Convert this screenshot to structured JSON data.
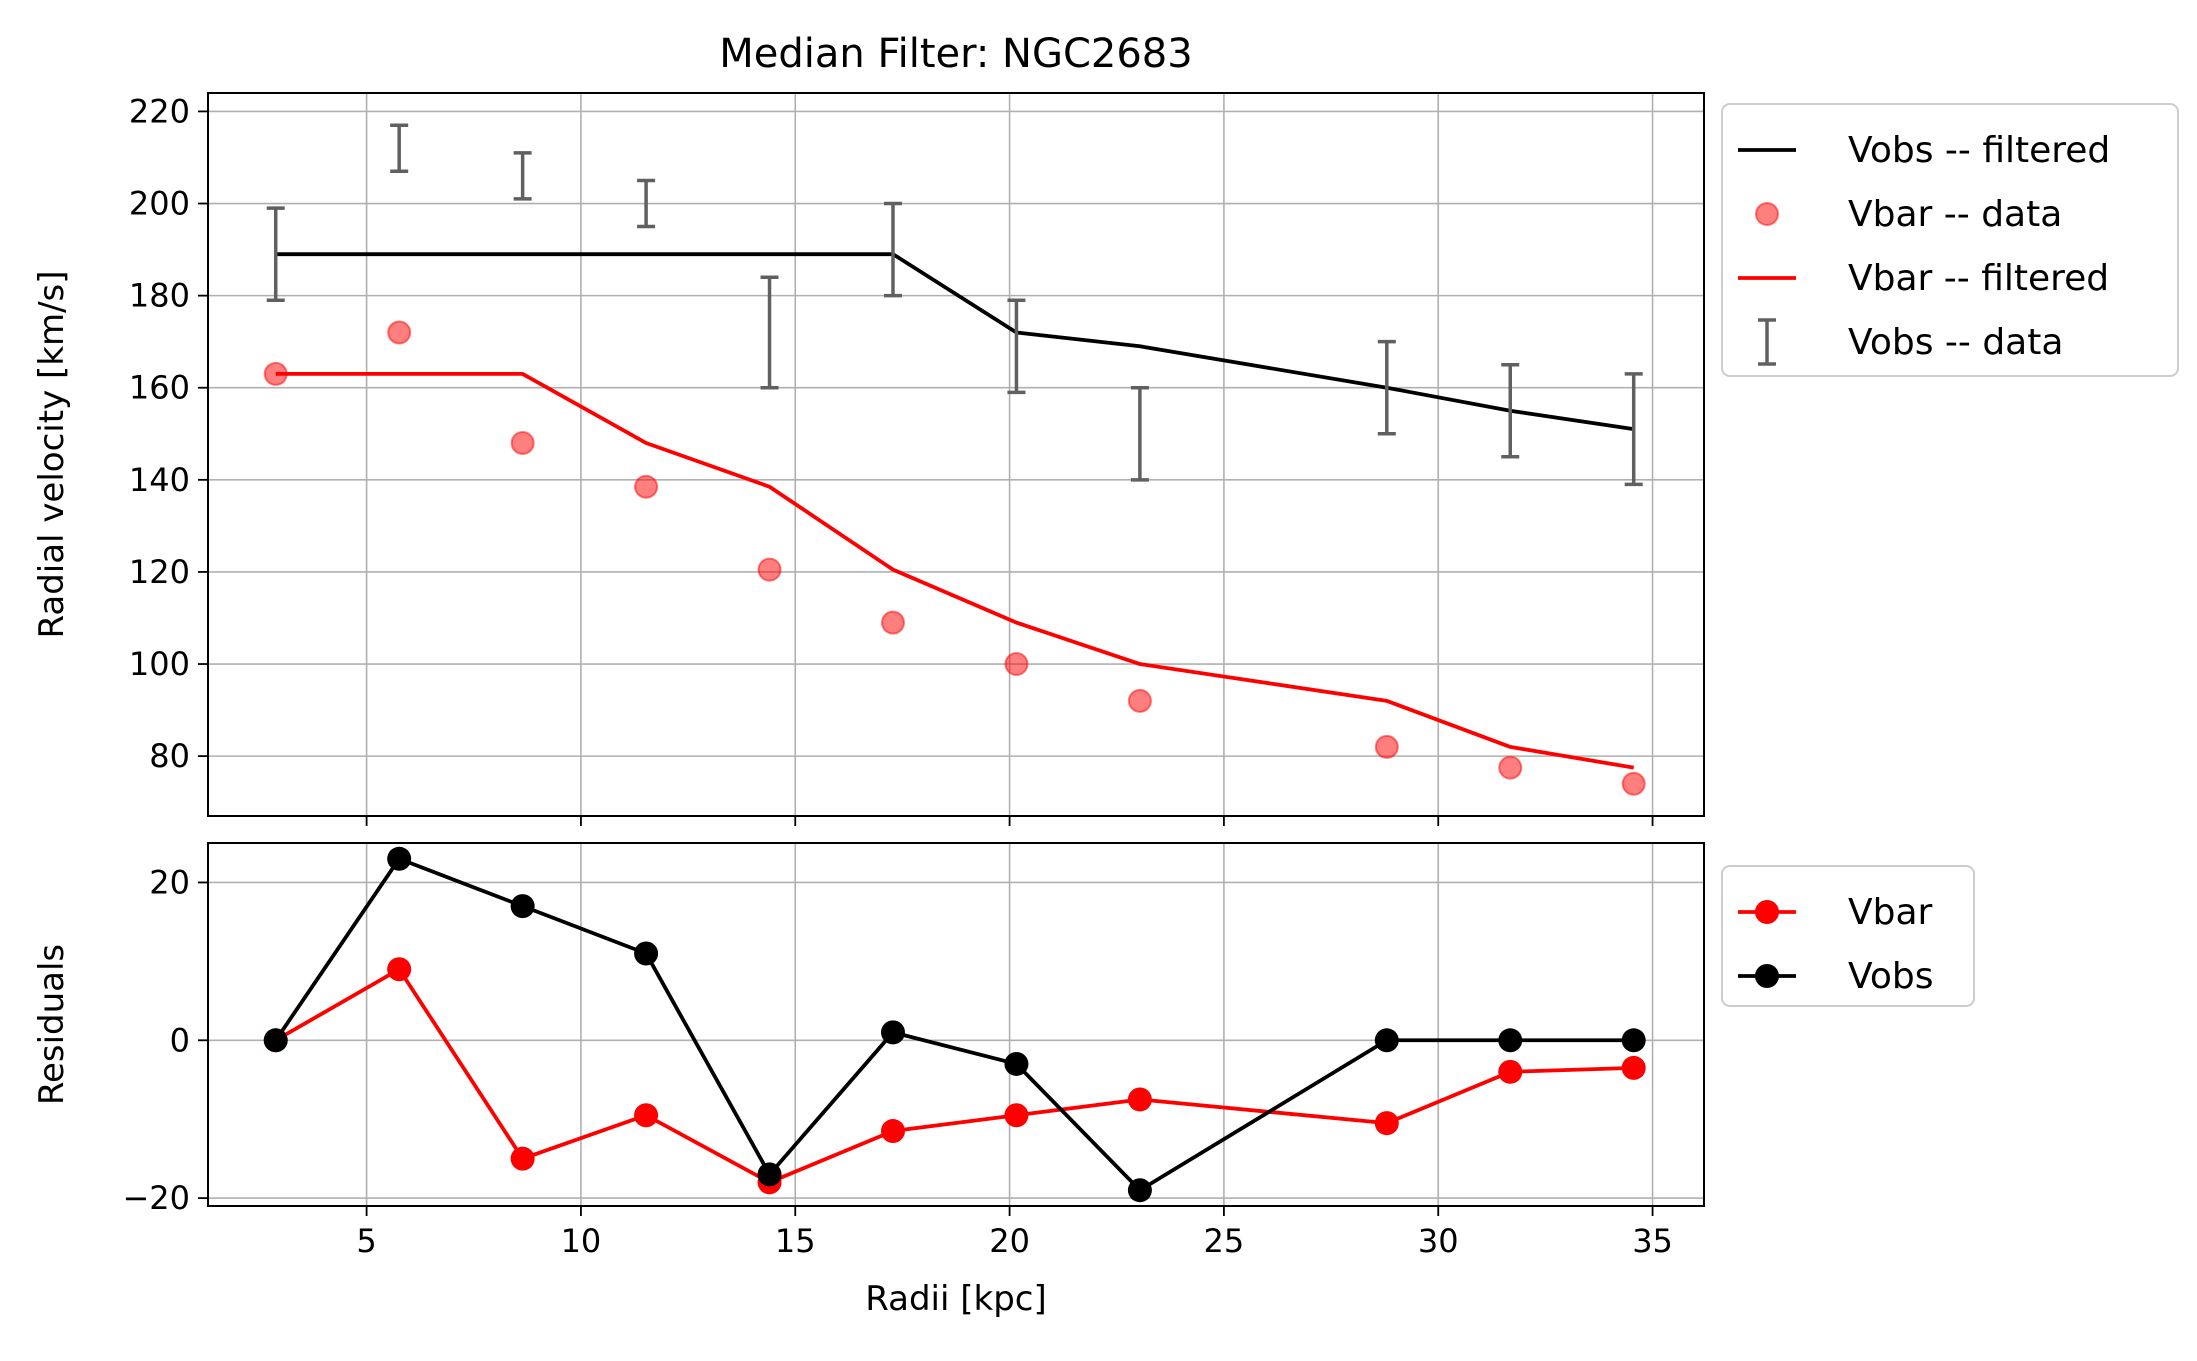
{
  "chart_data": [
    {
      "type": "line",
      "title": "Median Filter: NGC2683",
      "xlabel": "",
      "ylabel": "Radial velocity [km/s]",
      "xlim": [
        1.3,
        36.2
      ],
      "ylim": [
        67,
        224
      ],
      "grid": true,
      "legend_position": "outside-right",
      "x": [
        2.88,
        5.76,
        8.64,
        11.52,
        14.4,
        17.28,
        20.16,
        23.04,
        28.8,
        31.68,
        34.56
      ],
      "xticks": [
        5,
        10,
        15,
        20,
        25,
        30,
        35
      ],
      "yticks": [
        80,
        100,
        120,
        140,
        160,
        180,
        200,
        220
      ],
      "series": [
        {
          "name": "Vobs -- filtered",
          "kind": "line",
          "color": "#000000",
          "values": [
            189,
            189,
            189,
            189,
            189,
            189,
            172,
            169,
            160,
            155,
            151
          ]
        },
        {
          "name": "Vbar -- data",
          "kind": "scatter",
          "color": "#ff0000",
          "values": [
            163,
            172,
            148,
            138.5,
            120.5,
            109,
            100,
            92,
            82,
            77.5,
            74
          ]
        },
        {
          "name": "Vbar -- filtered",
          "kind": "line",
          "color": "#ff0000",
          "values": [
            163,
            163,
            163,
            148,
            138.5,
            120.5,
            109,
            100,
            92,
            82,
            77.5
          ]
        },
        {
          "name": "Vobs -- data",
          "kind": "errorbar",
          "color": "#606060",
          "lower": [
            179,
            207,
            201,
            195,
            160,
            180,
            159,
            140,
            150,
            145,
            139
          ],
          "upper": [
            199,
            217,
            211,
            205,
            184,
            200,
            179,
            160,
            170,
            165,
            163
          ]
        }
      ]
    },
    {
      "type": "line",
      "title": "",
      "xlabel": "Radii [kpc]",
      "ylabel": "Residuals",
      "xlim": [
        1.3,
        36.2
      ],
      "ylim": [
        -21,
        25
      ],
      "grid": true,
      "legend_position": "outside-right",
      "x": [
        2.88,
        5.76,
        8.64,
        11.52,
        14.4,
        17.28,
        20.16,
        23.04,
        28.8,
        31.68,
        34.56
      ],
      "xticks": [
        5,
        10,
        15,
        20,
        25,
        30,
        35
      ],
      "yticks": [
        -20,
        0,
        20
      ],
      "series": [
        {
          "name": "Vbar",
          "color": "#ff0000",
          "values": [
            0,
            9,
            -15,
            -9.5,
            -18,
            -11.5,
            -9.5,
            -7.5,
            -10.5,
            -4,
            -3.5
          ]
        },
        {
          "name": "Vobs",
          "color": "#000000",
          "values": [
            0,
            23,
            17,
            11,
            -17,
            1,
            -3,
            -19,
            0,
            0,
            0
          ]
        }
      ]
    }
  ]
}
